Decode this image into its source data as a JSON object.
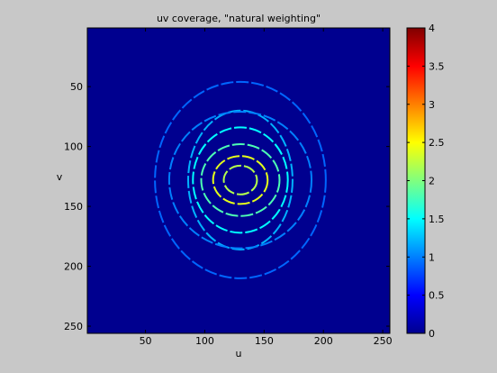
{
  "chart_data": {
    "type": "heatmap",
    "title": "uv coverage, \"natural weighting\"",
    "xlabel": "u",
    "ylabel": "v",
    "xlim": [
      1,
      256
    ],
    "ylim": [
      1,
      256
    ],
    "y_reversed": true,
    "x_ticks": [
      50,
      100,
      150,
      200,
      250
    ],
    "y_ticks": [
      50,
      100,
      150,
      200,
      250
    ],
    "background_value": 0,
    "colormap": "jet",
    "colorbar": {
      "range": [
        0,
        4
      ],
      "ticks": [
        "0",
        "0.5",
        "1",
        "1.5",
        "2",
        "2.5",
        "3",
        "3.5",
        "4"
      ]
    },
    "features": [
      {
        "shape": "ring",
        "center": [
          130,
          128
        ],
        "rx": 14,
        "ry": 12,
        "value": 2.2
      },
      {
        "shape": "ring",
        "center": [
          130,
          128
        ],
        "rx": 23,
        "ry": 20,
        "value": 2.4
      },
      {
        "shape": "ring",
        "center": [
          130,
          128
        ],
        "rx": 33,
        "ry": 30,
        "value": 1.8
      },
      {
        "shape": "ring",
        "center": [
          130,
          128
        ],
        "rx": 40,
        "ry": 44,
        "value": 1.5
      },
      {
        "shape": "ring",
        "center": [
          130,
          128
        ],
        "rx": 44,
        "ry": 58,
        "value": 1.2
      },
      {
        "shape": "ring",
        "center": [
          130,
          128
        ],
        "rx": 60,
        "ry": 57,
        "value": 1.0
      },
      {
        "shape": "ring",
        "center": [
          130,
          128
        ],
        "rx": 72,
        "ry": 82,
        "value": 0.9
      }
    ]
  }
}
